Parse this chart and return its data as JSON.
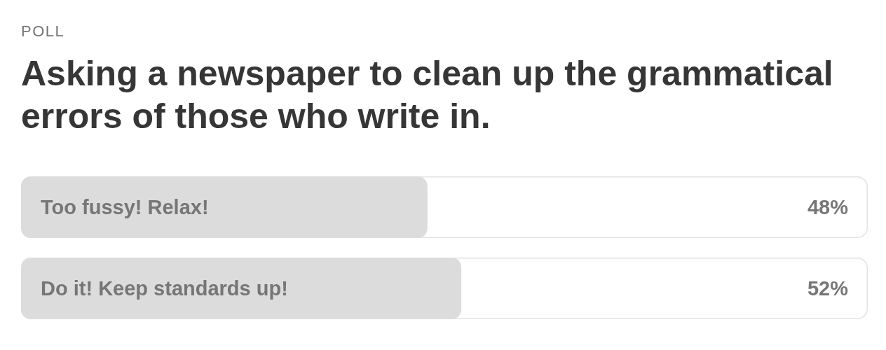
{
  "chart_data": {
    "type": "bar",
    "orientation": "horizontal",
    "annotations": [
      "POLL"
    ],
    "title": "Asking a newspaper to clean up the grammatical errors of those who write in.",
    "categories": [
      "Too fussy! Relax!",
      "Do it! Keep standards up!"
    ],
    "values": [
      48,
      52
    ],
    "value_labels": [
      "48%",
      "52%"
    ],
    "color": "#dcdcdc",
    "xlim": [
      0,
      100
    ]
  }
}
